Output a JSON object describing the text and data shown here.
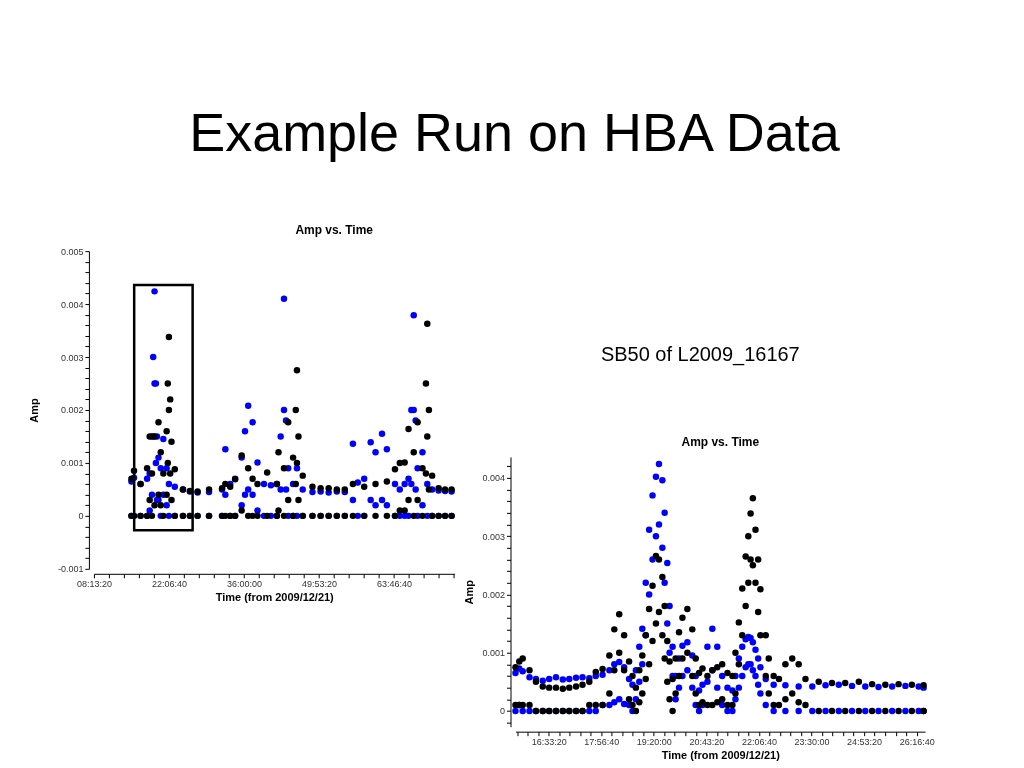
{
  "chart_data": [
    {
      "type": "other",
      "title": "Example Run on HBA Data"
    },
    {
      "type": "scatter",
      "title": "Amp vs. Time",
      "xlabel": "Time (from 2009/12/21)",
      "ylabel": "Amp",
      "xlim": [
        8.2222,
        75
      ],
      "ylim": [
        -0.001,
        0.005
      ],
      "grid": false,
      "xticks": [
        {
          "value": 8.2222,
          "label": "08:13:20"
        },
        {
          "value": 11,
          "label": null
        },
        {
          "value": 13.7778,
          "label": null
        },
        {
          "value": 16.5556,
          "label": null
        },
        {
          "value": 19.3333,
          "label": null
        },
        {
          "value": 22.1111,
          "label": "22:06:40"
        },
        {
          "value": 24.8889,
          "label": null
        },
        {
          "value": 27.6667,
          "label": null
        },
        {
          "value": 30.4444,
          "label": null
        },
        {
          "value": 33.2222,
          "label": null
        },
        {
          "value": 36,
          "label": "36:00:00"
        },
        {
          "value": 38.7778,
          "label": null
        },
        {
          "value": 41.5556,
          "label": null
        },
        {
          "value": 44.3333,
          "label": null
        },
        {
          "value": 47.1111,
          "label": null
        },
        {
          "value": 49.8889,
          "label": "49:53:20"
        },
        {
          "value": 52.6667,
          "label": null
        },
        {
          "value": 55.4444,
          "label": null
        },
        {
          "value": 58.2222,
          "label": null
        },
        {
          "value": 61,
          "label": null
        },
        {
          "value": 63.7778,
          "label": "63:46:40"
        },
        {
          "value": 66.5556,
          "label": null
        },
        {
          "value": 69.3333,
          "label": null
        },
        {
          "value": 72.1111,
          "label": null
        },
        {
          "value": 74.8889,
          "label": null
        }
      ],
      "yticks": [
        -0.001,
        {
          "value": -0.0008,
          "label": null
        },
        {
          "value": -0.0006,
          "label": null
        },
        {
          "value": -0.0004,
          "label": null
        },
        {
          "value": -0.0002,
          "label": null
        },
        0,
        {
          "value": 0.0002,
          "label": null
        },
        {
          "value": 0.0004,
          "label": null
        },
        {
          "value": 0.0006,
          "label": null
        },
        {
          "value": 0.0008,
          "label": null
        },
        0.001,
        {
          "value": 0.0012,
          "label": null
        },
        {
          "value": 0.0014,
          "label": null
        },
        {
          "value": 0.0016,
          "label": null
        },
        {
          "value": 0.0018,
          "label": null
        },
        0.002,
        {
          "value": 0.0022,
          "label": null
        },
        {
          "value": 0.0024,
          "label": null
        },
        {
          "value": 0.0026,
          "label": null
        },
        {
          "value": 0.0028,
          "label": null
        },
        0.003,
        {
          "value": 0.0032,
          "label": null
        },
        {
          "value": 0.0034,
          "label": null
        },
        {
          "value": 0.0036,
          "label": null
        },
        {
          "value": 0.0038,
          "label": null
        },
        0.004,
        {
          "value": 0.0042,
          "label": null
        },
        {
          "value": 0.0044,
          "label": null
        },
        {
          "value": 0.0046,
          "label": null
        },
        {
          "value": 0.0048,
          "label": null
        },
        0.005
      ],
      "series": [
        {
          "color": "#0000ff",
          "x": [
            15.17,
            15.17,
            15.65,
            15.65,
            16.86,
            16.86,
            18.07,
            18.07,
            18.55,
            18.55,
            18.97,
            18.97,
            19.2,
            19.2,
            19.45,
            19.45,
            19.7,
            19.7,
            19.9,
            19.9,
            20.18,
            20.18,
            20.6,
            20.6,
            21.08,
            21.08,
            21.69,
            21.69,
            22.11,
            22.11,
            23.2,
            23.2,
            24.71,
            24.71,
            26,
            26,
            27.42,
            27.42,
            29.54,
            29.54,
            31.95,
            31.95,
            32.56,
            32.56,
            33.46,
            33.46,
            34.37,
            34.37,
            35.58,
            35.58,
            36.2,
            36.2,
            36.79,
            36.79,
            37.61,
            37.61,
            38.51,
            38.51,
            39.71,
            39.71,
            41,
            41,
            42.1,
            42.1,
            42.8,
            42.8,
            43.42,
            43.42,
            43.8,
            43.8,
            44.2,
            44.2,
            45.1,
            45.1,
            45.82,
            45.82,
            46.89,
            46.89,
            48.69,
            48.69,
            50.2,
            50.2,
            51.69,
            51.69,
            53.2,
            53.2,
            54.68,
            54.68,
            56.18,
            56.18,
            57.08,
            57.08,
            58.27,
            58.27,
            59.47,
            59.47,
            60.37,
            60.37,
            61.57,
            61.57,
            62.47,
            62.47,
            63.97,
            63.97,
            64.86,
            64.86,
            65.76,
            65.76,
            66.48,
            66.48,
            67,
            67,
            67.44,
            67.44,
            67.8,
            67.8,
            68.16,
            68.16,
            69.06,
            69.06,
            69.95,
            69.95,
            70.85,
            70.85,
            72.05,
            72.05,
            73.25,
            73.25,
            74.45,
            74.45
          ],
          "values": [
            0.00065,
            0,
            0.00072,
            0,
            0.0006,
            0,
            0.0007,
            0,
            0.0008,
            0.0001,
            0.0015,
            0.0004,
            0.003,
            0.0015,
            0.00424,
            0.0025,
            0.0025,
            0.001,
            0.0015,
            0.0003,
            0.0011,
            0.0003,
            0.0009,
            0,
            0.00145,
            0.0004,
            0.0009,
            0.0002,
            0.0006,
            0,
            0.00055,
            0,
            0.0005,
            0,
            0.00046,
            0,
            0.00044,
            0,
            0.00045,
            0,
            0.0005,
            0,
            0.00126,
            0.0004,
            0.0006,
            0,
            0.0007,
            0,
            0.0011,
            0.0002,
            0.0016,
            0.0004,
            0.00208,
            0.0005,
            0.00177,
            0.0004,
            0.00101,
            0.0001,
            0.0006,
            0,
            0.00058,
            0,
            0.0006,
            0,
            0.0015,
            0.0005,
            0.0041,
            0.002,
            0.0018,
            0.0005,
            0.0009,
            0,
            0.0006,
            0,
            0.0009,
            0,
            0.0005,
            0,
            0.00045,
            0,
            0.00046,
            0,
            0.00044,
            0,
            0.00046,
            0,
            0.00045,
            0,
            0.00136,
            0.0003,
            0.00063,
            0,
            0.0007,
            0,
            0.00139,
            0.0003,
            0.0012,
            0.0002,
            0.00155,
            0.0003,
            0.00126,
            0.0002,
            0.0006,
            0,
            0.0005,
            0,
            0.0006,
            0,
            0.0007,
            0,
            0.002,
            0.0006,
            0.00379,
            0.002,
            0.0018,
            0.0005,
            0.0009,
            0,
            0.0012,
            0.0002,
            0.0006,
            0,
            0.0005,
            0,
            0.00048,
            0,
            0.00047,
            0,
            0.00046,
            0
          ]
        },
        {
          "color": "#000000",
          "x": [
            15.17,
            15.17,
            15.65,
            15.65,
            16.86,
            16.86,
            18.07,
            18.07,
            18.55,
            18.55,
            18.97,
            18.97,
            19.45,
            19.45,
            20.18,
            20.18,
            20.6,
            20.6,
            21.08,
            21.08,
            21.69,
            21.69,
            21.9,
            21.9,
            22.11,
            22.11,
            22.35,
            22.35,
            22.59,
            22.59,
            23.2,
            23.2,
            24.71,
            24.71,
            26,
            26,
            27.42,
            27.42,
            29.54,
            29.54,
            31.95,
            31.95,
            32.56,
            32.56,
            33.46,
            33.46,
            34.37,
            34.37,
            35.58,
            35.58,
            36.79,
            36.79,
            37.61,
            37.61,
            38.51,
            38.51,
            40.3,
            40.3,
            42.1,
            42.1,
            42.4,
            42.4,
            43.42,
            43.42,
            44.2,
            44.2,
            45.1,
            45.1,
            45.6,
            45.6,
            45.82,
            45.82,
            46.1,
            46.1,
            46.89,
            46.89,
            48.69,
            48.69,
            50.2,
            50.2,
            51.69,
            51.69,
            53.2,
            53.2,
            54.68,
            54.68,
            56.18,
            56.18,
            58.27,
            58.27,
            60.37,
            60.37,
            62.47,
            62.47,
            63.97,
            63.97,
            64.86,
            64.86,
            65.76,
            65.76,
            66.48,
            66.48,
            67.44,
            67.44,
            68.16,
            68.16,
            69.06,
            69.06,
            69.7,
            69.7,
            69.95,
            69.95,
            70.25,
            70.25,
            70.85,
            70.85,
            72.05,
            72.05,
            73.25,
            73.25,
            74.45,
            74.45
          ],
          "values": [
            0.0007,
            0,
            0.00085,
            0,
            0.0006,
            0,
            0.0009,
            0,
            0.0015,
            0.0003,
            0.0008,
            0,
            0.0015,
            0.0002,
            0.00177,
            0.0004,
            0.0012,
            0.0002,
            0.0008,
            0,
            0.0016,
            0.0004,
            0.0025,
            0.001,
            0.00338,
            0.002,
            0.0022,
            0.0008,
            0.0014,
            0.0003,
            0.00088,
            0,
            0.0005,
            0,
            0.00047,
            0,
            0.00046,
            0,
            0.0005,
            0,
            0.00052,
            0,
            0.0006,
            0,
            0.00055,
            0,
            0.00069,
            0,
            0.00114,
            0.0001,
            0.0009,
            0,
            0.0007,
            0,
            0.0006,
            0,
            0.00082,
            0,
            0.0006,
            0,
            0.0012,
            0.0001,
            0.0009,
            0,
            0.00177,
            0.0003,
            0.0011,
            0,
            0.002,
            0.0006,
            0.00275,
            0.001,
            0.0015,
            0.0003,
            0.00076,
            0,
            0.00055,
            0,
            0.00052,
            0,
            0.00052,
            0,
            0.0005,
            0,
            0.0005,
            0,
            0.0006,
            0,
            0.00055,
            0,
            0.0006,
            0,
            0.00065,
            0,
            0.00088,
            0,
            0.001,
            0.0001,
            0.00101,
            0.0001,
            0.00164,
            0.0003,
            0.0012,
            0,
            0.00177,
            0.0003,
            0.0009,
            0,
            0.0025,
            0.0008,
            0.00363,
            0.0015,
            0.002,
            0.0005,
            0.00076,
            0,
            0.00052,
            0,
            0.0005,
            0,
            0.0005,
            0
          ]
        }
      ]
    },
    {
      "type": "scatter",
      "title": "Amp vs. Time",
      "xlabel": "Time (from 2009/12/21)",
      "ylabel": "Amp",
      "annotations": [
        "SB50 of L2009_16167"
      ],
      "xlim": [
        15.68,
        26.5
      ],
      "ylim": [
        -0.00027,
        0.00436
      ],
      "grid": false,
      "xticks": [
        {
          "value": 15.7222,
          "label": null
        },
        {
          "value": 16,
          "label": null
        },
        {
          "value": 16.2778,
          "label": null
        },
        {
          "value": 16.5556,
          "label": "16:33:20"
        },
        {
          "value": 16.8333,
          "label": null
        },
        {
          "value": 17.1111,
          "label": null
        },
        {
          "value": 17.3889,
          "label": null
        },
        {
          "value": 17.6667,
          "label": null
        },
        {
          "value": 17.9444,
          "label": "17:56:40"
        },
        {
          "value": 18.2222,
          "label": null
        },
        {
          "value": 18.5,
          "label": null
        },
        {
          "value": 18.7778,
          "label": null
        },
        {
          "value": 19.0556,
          "label": null
        },
        {
          "value": 19.3333,
          "label": "19:20:00"
        },
        {
          "value": 19.6111,
          "label": null
        },
        {
          "value": 19.8889,
          "label": null
        },
        {
          "value": 20.1667,
          "label": null
        },
        {
          "value": 20.4444,
          "label": null
        },
        {
          "value": 20.7222,
          "label": "20:43:20"
        },
        {
          "value": 21,
          "label": null
        },
        {
          "value": 21.2778,
          "label": null
        },
        {
          "value": 21.5556,
          "label": null
        },
        {
          "value": 21.8333,
          "label": null
        },
        {
          "value": 22.1111,
          "label": "22:06:40"
        },
        {
          "value": 22.3889,
          "label": null
        },
        {
          "value": 22.6667,
          "label": null
        },
        {
          "value": 22.9444,
          "label": null
        },
        {
          "value": 23.2222,
          "label": null
        },
        {
          "value": 23.5,
          "label": "23:30:00"
        },
        {
          "value": 23.7778,
          "label": null
        },
        {
          "value": 24.0556,
          "label": null
        },
        {
          "value": 24.3333,
          "label": null
        },
        {
          "value": 24.6111,
          "label": null
        },
        {
          "value": 24.8889,
          "label": "24:53:20"
        },
        {
          "value": 25.1667,
          "label": null
        },
        {
          "value": 25.4444,
          "label": null
        },
        {
          "value": 25.7222,
          "label": null
        },
        {
          "value": 26,
          "label": null
        },
        {
          "value": 26.2778,
          "label": "26:16:40"
        }
      ],
      "yticks": [
        {
          "value": -0.0002,
          "label": null
        },
        0,
        {
          "value": 0.0002,
          "label": null
        },
        {
          "value": 0.0004,
          "label": null
        },
        {
          "value": 0.0006,
          "label": null
        },
        {
          "value": 0.0008,
          "label": null
        },
        0.001,
        {
          "value": 0.0012,
          "label": null
        },
        {
          "value": 0.0014,
          "label": null
        },
        {
          "value": 0.0016,
          "label": null
        },
        {
          "value": 0.0018,
          "label": null
        },
        0.002,
        {
          "value": 0.0022,
          "label": null
        },
        {
          "value": 0.0024,
          "label": null
        },
        {
          "value": 0.0026,
          "label": null
        },
        {
          "value": 0.0028,
          "label": null
        },
        0.003,
        {
          "value": 0.0032,
          "label": null
        },
        {
          "value": 0.0034,
          "label": null
        },
        {
          "value": 0.0036,
          "label": null
        },
        {
          "value": 0.0038,
          "label": null
        },
        0.004,
        {
          "value": 0.0042,
          "label": null
        }
      ],
      "series": [
        {
          "color": "#0000ff",
          "x": [
            15.68,
            15.68,
            15.78,
            15.78,
            15.87,
            15.87,
            16.05,
            16.05,
            16.22,
            16.22,
            16.4,
            16.4,
            16.57,
            16.57,
            16.75,
            16.75,
            16.93,
            16.93,
            17.1,
            17.1,
            17.28,
            17.28,
            17.45,
            17.45,
            17.63,
            17.63,
            17.8,
            17.8,
            17.98,
            17.98,
            18.16,
            18.16,
            18.29,
            18.29,
            18.42,
            18.42,
            18.55,
            18.55,
            18.68,
            18.68,
            18.77,
            18.77,
            18.86,
            18.86,
            18.95,
            18.95,
            19.03,
            19.03,
            19.12,
            19.12,
            19.21,
            19.21,
            19.3,
            19.3,
            19.39,
            19.39,
            19.47,
            19.47,
            19.56,
            19.56,
            19.62,
            19.62,
            19.69,
            19.69,
            19.75,
            19.75,
            19.83,
            19.83,
            19.91,
            19.91,
            20,
            20,
            20.09,
            20.09,
            20.22,
            20.22,
            20.35,
            20.35,
            20.44,
            20.44,
            20.53,
            20.53,
            20.62,
            20.62,
            20.75,
            20.75,
            20.88,
            20.88,
            21.01,
            21.01,
            21.14,
            21.14,
            21.28,
            21.28,
            21.41,
            21.41,
            21.49,
            21.49,
            21.58,
            21.58,
            21.67,
            21.67,
            21.76,
            21.76,
            21.83,
            21.83,
            21.89,
            21.89,
            21.95,
            21.95,
            22.02,
            22.02,
            22.09,
            22.09,
            22.15,
            22.15,
            22.29,
            22.29,
            22.5,
            22.5,
            22.81,
            22.81,
            23.16,
            23.16,
            23.52,
            23.52,
            23.87,
            23.87,
            24.22,
            24.22,
            24.57,
            24.57,
            24.92,
            24.92,
            25.27,
            25.27,
            25.63,
            25.63,
            25.98,
            25.98,
            26.33,
            26.33,
            26.46,
            26.46
          ],
          "values": [
            0.00065,
            0,
            0.00073,
            0.0001,
            0.00068,
            0,
            0.00058,
            0,
            0.00055,
            0,
            0.00052,
            0,
            0.00055,
            0,
            0.00058,
            0,
            0.00054,
            0,
            0.00055,
            0,
            0.00057,
            0,
            0.00058,
            0,
            0.00056,
            0,
            0.0006,
            0,
            0.00062,
            0.0001,
            0.0007,
            0.0001,
            0.0008,
            0.00015,
            0.00084,
            0.0002,
            0.00075,
            0.00012,
            0.00055,
            0.0001,
            0.00045,
            0,
            0.0007,
            0.0002,
            0.0011,
            0.0005,
            0.00141,
            0.0008,
            0.0022,
            0.0013,
            0.00311,
            0.002,
            0.0037,
            0.0026,
            0.00402,
            0.003,
            0.00424,
            0.0032,
            0.00396,
            0.0028,
            0.0034,
            0.0022,
            0.00254,
            0.0015,
            0.0018,
            0.001,
            0.0011,
            0.0006,
            0.0006,
            0.0002,
            0.0009,
            0.0004,
            0.00112,
            0.0006,
            0.00118,
            0.0007,
            0.00095,
            0.0004,
            0.0006,
            0.0001,
            0.00035,
            0,
            0.00045,
            0.0001,
            0.0011,
            0.0005,
            0.00141,
            0.0007,
            0.0011,
            0.0004,
            0.0006,
            0.0001,
            0.0004,
            0,
            0.00035,
            0,
            0.0006,
            0.0002,
            0.0009,
            0.0004,
            0.0011,
            0.0006,
            0.00123,
            0.00075,
            0.00127,
            0.0008,
            0.00125,
            0.0008,
            0.00118,
            0.0007,
            0.00105,
            0.0006,
            0.0009,
            0.00045,
            0.00075,
            0.0003,
            0.00055,
            0.0001,
            0.00045,
            0,
            0.00044,
            0,
            0.00042,
            0,
            0.00042,
            0,
            0.00044,
            0,
            0.00045,
            0,
            0.00043,
            0,
            0.00042,
            0,
            0.00041,
            0,
            0.00042,
            0,
            0.00043,
            0,
            0.00042,
            0,
            0.0004,
            0
          ]
        },
        {
          "color": "#000000",
          "x": [
            15.68,
            15.68,
            15.78,
            15.78,
            15.87,
            15.87,
            16.05,
            16.05,
            16.22,
            16.22,
            16.4,
            16.4,
            16.57,
            16.57,
            16.75,
            16.75,
            16.93,
            16.93,
            17.1,
            17.1,
            17.28,
            17.28,
            17.45,
            17.45,
            17.63,
            17.63,
            17.8,
            17.8,
            17.98,
            17.98,
            18.16,
            18.16,
            18.29,
            18.29,
            18.42,
            18.42,
            18.55,
            18.55,
            18.68,
            18.68,
            18.77,
            18.77,
            18.86,
            18.86,
            18.95,
            18.95,
            19.03,
            19.03,
            19.12,
            19.12,
            19.21,
            19.21,
            19.3,
            19.3,
            19.39,
            19.39,
            19.47,
            19.47,
            19.56,
            19.56,
            19.62,
            19.62,
            19.69,
            19.69,
            19.75,
            19.75,
            19.83,
            19.83,
            19.91,
            19.91,
            20,
            20,
            20.09,
            20.09,
            20.22,
            20.22,
            20.35,
            20.35,
            20.44,
            20.44,
            20.53,
            20.53,
            20.62,
            20.62,
            20.75,
            20.75,
            20.88,
            20.88,
            21.01,
            21.01,
            21.14,
            21.14,
            21.28,
            21.28,
            21.41,
            21.41,
            21.49,
            21.49,
            21.58,
            21.58,
            21.67,
            21.67,
            21.76,
            21.76,
            21.83,
            21.83,
            21.89,
            21.89,
            21.95,
            21.95,
            22.02,
            22.02,
            22.09,
            22.09,
            22.15,
            22.15,
            22.29,
            22.29,
            22.37,
            22.37,
            22.5,
            22.5,
            22.64,
            22.64,
            22.81,
            22.81,
            22.99,
            22.99,
            23.16,
            23.16,
            23.34,
            23.34,
            23.69,
            23.69,
            24.04,
            24.04,
            24.39,
            24.39,
            24.75,
            24.75,
            25.1,
            25.1,
            25.45,
            25.45,
            25.8,
            25.8,
            26.15,
            26.15,
            26.46,
            26.46
          ],
          "values": [
            0.00075,
            0.0001,
            0.00085,
            0.0001,
            0.0009,
            0.0001,
            0.0007,
            0.0001,
            0.0005,
            0,
            0.00042,
            0,
            0.0004,
            0,
            0.0004,
            0,
            0.00038,
            0,
            0.0004,
            0,
            0.00042,
            0,
            0.00045,
            0,
            0.0005,
            0.0001,
            0.00067,
            0.0001,
            0.00072,
            0.0001,
            0.00095,
            0.0003,
            0.0014,
            0.0007,
            0.00166,
            0.001,
            0.0013,
            0.0007,
            0.00085,
            0.0002,
            0.0006,
            0.0001,
            0.0004,
            0,
            0.0007,
            0.00015,
            0.00095,
            0.0003,
            0.0013,
            0.00055,
            0.00175,
            0.0008,
            0.00215,
            0.0012,
            0.00266,
            0.0015,
            0.0026,
            0.0017,
            0.0023,
            0.0013,
            0.0018,
            0.0009,
            0.0012,
            0.0005,
            0.00085,
            0.0002,
            0.00055,
            0,
            0.0009,
            0.0003,
            0.00135,
            0.0006,
            0.0016,
            0.0009,
            0.00175,
            0.001,
            0.0014,
            0.0006,
            0.0009,
            0.0003,
            0.00065,
            0.0001,
            0.00073,
            0.00015,
            0.0006,
            0.0001,
            0.0007,
            0.0001,
            0.00075,
            0.00015,
            0.0008,
            0.0002,
            0.00065,
            0.0001,
            0.0006,
            0.0001,
            0.001,
            0.0003,
            0.00152,
            0.0008,
            0.0021,
            0.0013,
            0.00265,
            0.0018,
            0.003,
            0.0022,
            0.00339,
            0.0026,
            0.00365,
            0.0025,
            0.00311,
            0.0022,
            0.0026,
            0.0017,
            0.00209,
            0.0013,
            0.0013,
            0.0006,
            0.0009,
            0.0003,
            0.0006,
            0.0001,
            0.00055,
            0.0001,
            0.0008,
            0.0002,
            0.0009,
            0.0003,
            0.0008,
            0.00015,
            0.00055,
            0.0001,
            0.0005,
            0,
            0.00048,
            0,
            0.00048,
            0,
            0.0005,
            0,
            0.00046,
            0,
            0.00045,
            0,
            0.00046,
            0,
            0.00045,
            0,
            0.00044,
            0
          ]
        }
      ]
    }
  ]
}
